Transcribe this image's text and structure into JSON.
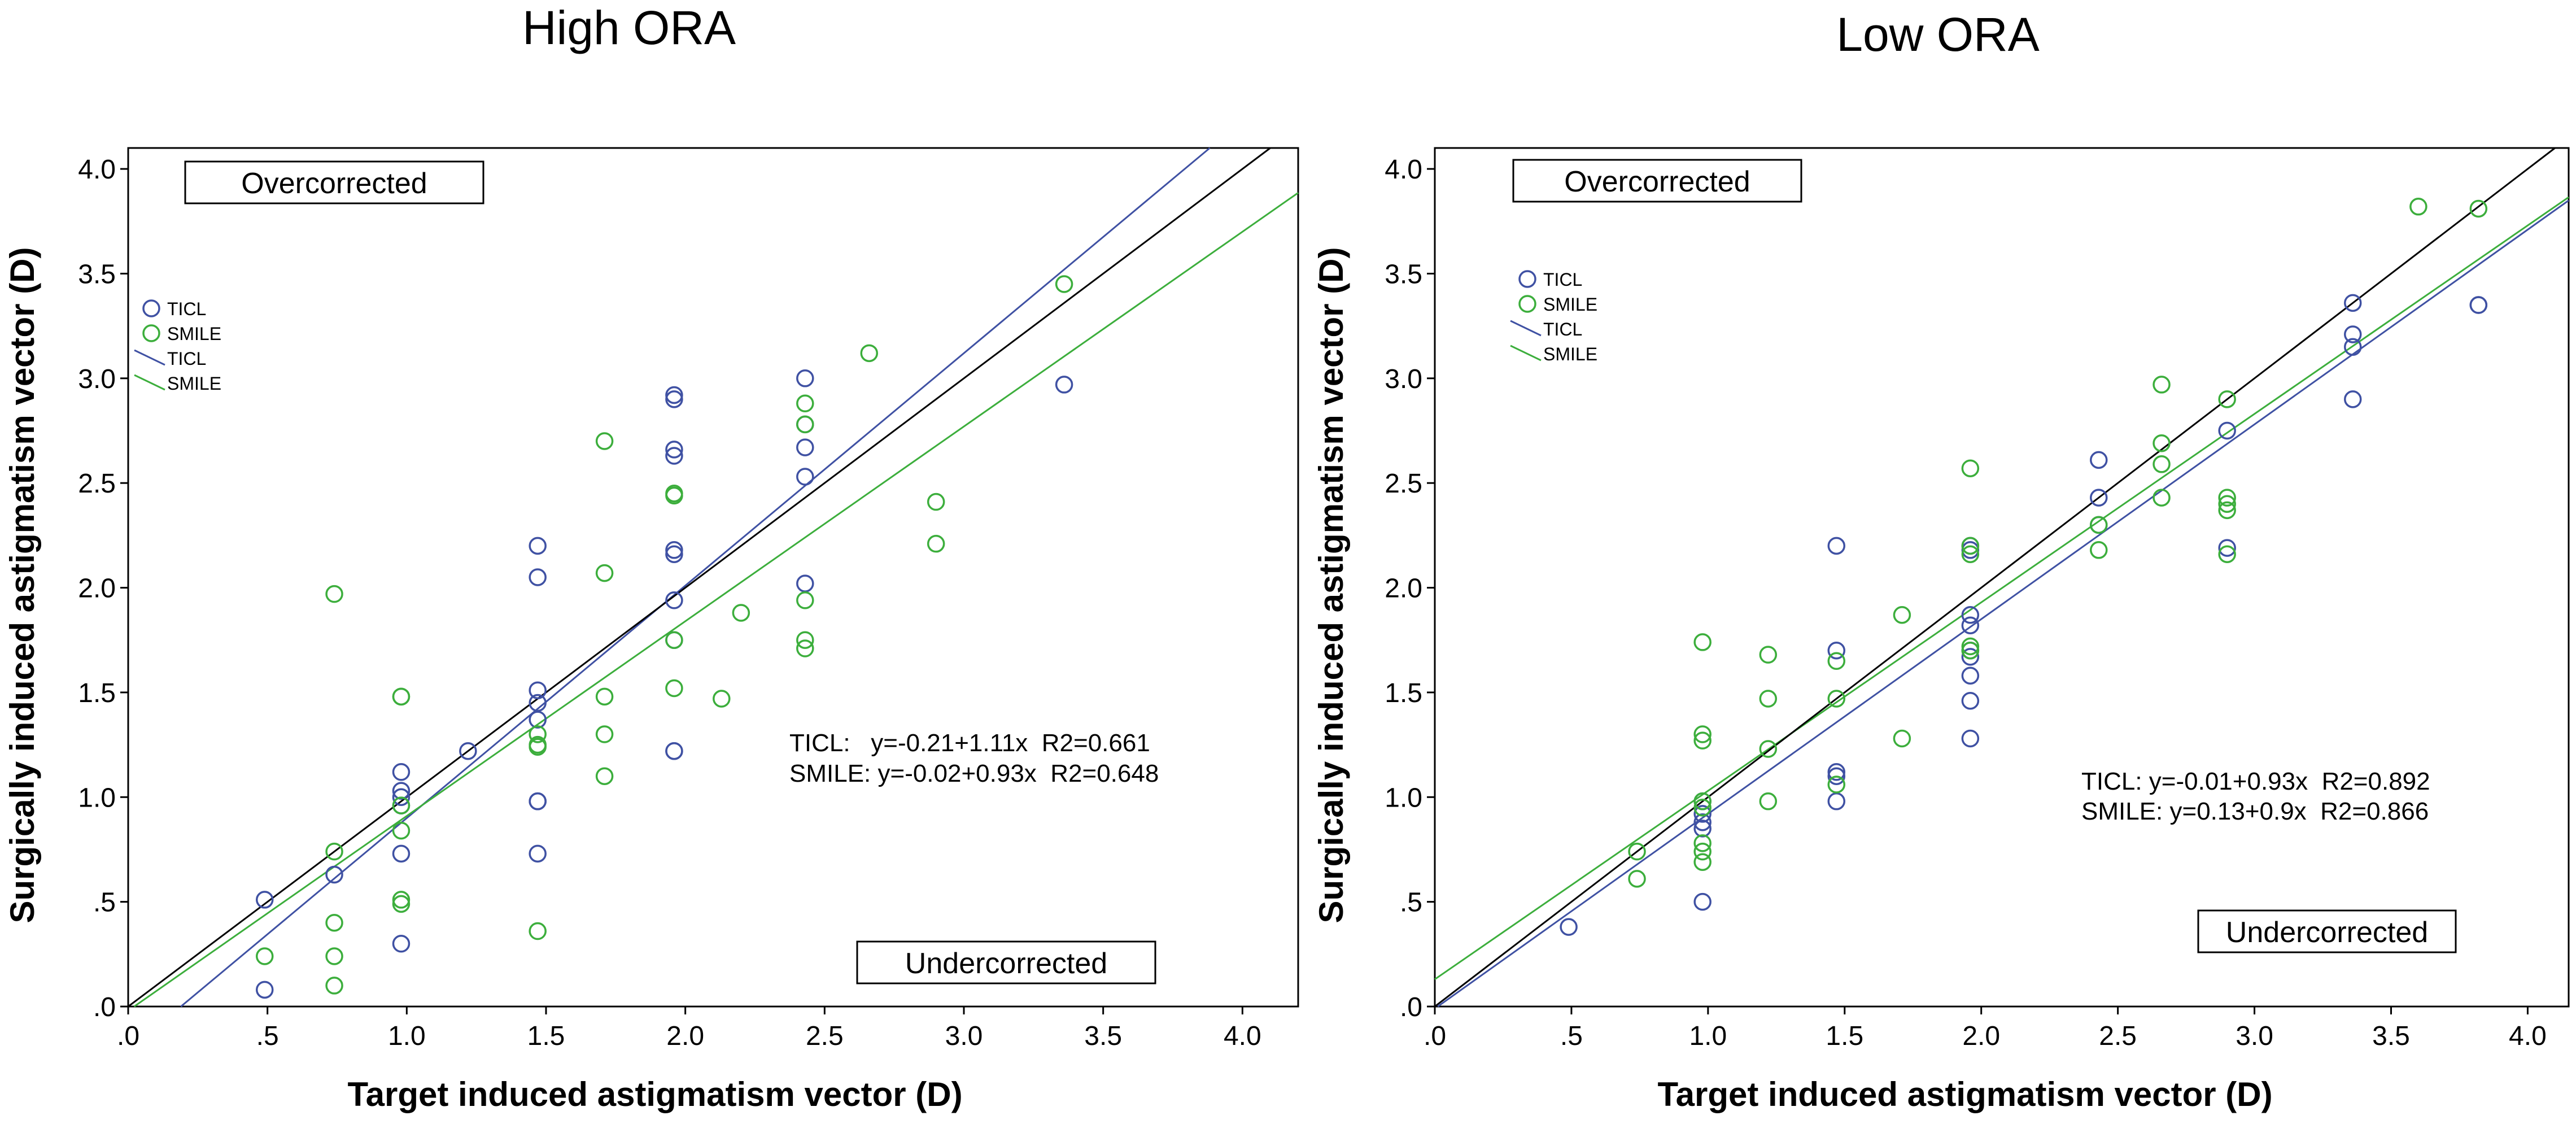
{
  "chart_data": [
    {
      "type": "scatter",
      "title": "High ORA",
      "xlabel": "Target induced astigmatism vector (D)",
      "ylabel": "Surgically induced astigmatism vector (D)",
      "xlim": [
        0,
        4.2
      ],
      "ylim": [
        0,
        4.1
      ],
      "xticks": [
        ".0",
        ".5",
        "1.0",
        "1.5",
        "2.0",
        "2.5",
        "3.0",
        "3.5",
        "4.0"
      ],
      "yticks": [
        ".0",
        ".5",
        "1.0",
        "1.5",
        "2.0",
        "2.5",
        "3.0",
        "3.5",
        "4.0"
      ],
      "label_over": "Overcorrected",
      "label_under": "Undercorrected",
      "legend": [
        {
          "label": "TICL",
          "kind": "marker",
          "color": "#3f51a3"
        },
        {
          "label": "SMILE",
          "kind": "marker",
          "color": "#3cae3c"
        },
        {
          "label": "TICL",
          "kind": "line",
          "color": "#3f51a3"
        },
        {
          "label": "SMILE",
          "kind": "line",
          "color": "#3cae3c"
        }
      ],
      "equations": [
        "TICL:   y=-0.21+1.11x  R2=0.661",
        "SMILE: y=-0.02+0.93x  R2=0.648"
      ],
      "series": [
        {
          "name": "TICL",
          "color": "#3f51a3",
          "points": [
            [
              0.49,
              0.51
            ],
            [
              0.49,
              0.08
            ],
            [
              0.74,
              0.63
            ],
            [
              0.98,
              1.12
            ],
            [
              0.98,
              1.03
            ],
            [
              0.98,
              1.0
            ],
            [
              0.98,
              0.96
            ],
            [
              0.98,
              0.73
            ],
            [
              0.98,
              0.3
            ],
            [
              1.22,
              1.22
            ],
            [
              1.47,
              2.2
            ],
            [
              1.47,
              2.05
            ],
            [
              1.47,
              1.51
            ],
            [
              1.47,
              1.45
            ],
            [
              1.47,
              1.37
            ],
            [
              1.47,
              0.98
            ],
            [
              1.47,
              0.98
            ],
            [
              1.47,
              0.73
            ],
            [
              1.96,
              2.92
            ],
            [
              1.96,
              2.9
            ],
            [
              1.96,
              2.66
            ],
            [
              1.96,
              2.63
            ],
            [
              1.96,
              2.18
            ],
            [
              1.96,
              2.16
            ],
            [
              1.96,
              1.94
            ],
            [
              1.96,
              1.75
            ],
            [
              1.96,
              1.22
            ],
            [
              1.96,
              1.22
            ],
            [
              2.43,
              3.0
            ],
            [
              2.43,
              2.78
            ],
            [
              2.43,
              2.67
            ],
            [
              2.43,
              2.53
            ],
            [
              2.43,
              2.02
            ],
            [
              3.36,
              2.97
            ]
          ]
        },
        {
          "name": "SMILE",
          "color": "#3cae3c",
          "points": [
            [
              0.49,
              0.24
            ],
            [
              0.74,
              1.97
            ],
            [
              0.74,
              0.74
            ],
            [
              0.74,
              0.4
            ],
            [
              0.74,
              0.24
            ],
            [
              0.74,
              0.1
            ],
            [
              0.98,
              1.48
            ],
            [
              0.98,
              1.48
            ],
            [
              0.98,
              0.96
            ],
            [
              0.98,
              0.84
            ],
            [
              0.98,
              0.51
            ],
            [
              0.98,
              0.49
            ],
            [
              1.47,
              1.3
            ],
            [
              1.47,
              1.25
            ],
            [
              1.47,
              1.24
            ],
            [
              1.47,
              0.36
            ],
            [
              1.71,
              2.7
            ],
            [
              1.71,
              2.07
            ],
            [
              1.71,
              1.48
            ],
            [
              1.71,
              1.3
            ],
            [
              1.71,
              1.1
            ],
            [
              1.96,
              2.45
            ],
            [
              1.96,
              2.44
            ],
            [
              1.96,
              1.75
            ],
            [
              1.96,
              1.52
            ],
            [
              2.13,
              1.47
            ],
            [
              2.2,
              1.88
            ],
            [
              2.43,
              2.88
            ],
            [
              2.43,
              2.78
            ],
            [
              2.43,
              1.94
            ],
            [
              2.43,
              1.75
            ],
            [
              2.43,
              1.71
            ],
            [
              2.66,
              3.12
            ],
            [
              2.9,
              2.41
            ],
            [
              2.9,
              2.21
            ],
            [
              3.36,
              3.45
            ]
          ]
        }
      ],
      "lines": [
        {
          "name": "TICL",
          "color": "#3f51a3",
          "intercept": -0.21,
          "slope": 1.11
        },
        {
          "name": "SMILE",
          "color": "#3cae3c",
          "intercept": -0.02,
          "slope": 0.93
        },
        {
          "name": "reference",
          "color": "#000000",
          "intercept": 0,
          "slope": 1
        }
      ]
    },
    {
      "type": "scatter",
      "title": "Low ORA",
      "xlabel": "Target induced astigmatism vector (D)",
      "ylabel": "Surgically induced astigmatism vector (D)",
      "xlim": [
        0,
        4.15
      ],
      "ylim": [
        0,
        4.1
      ],
      "xticks": [
        ".0",
        ".5",
        "1.0",
        "1.5",
        "2.0",
        "2.5",
        "3.0",
        "3.5",
        "4.0"
      ],
      "yticks": [
        ".0",
        ".5",
        "1.0",
        "1.5",
        "2.0",
        "2.5",
        "3.0",
        "3.5",
        "4.0"
      ],
      "label_over": "Overcorrected",
      "label_under": "Undercorrected",
      "legend": [
        {
          "label": "TICL",
          "kind": "marker",
          "color": "#3f51a3"
        },
        {
          "label": "SMILE",
          "kind": "marker",
          "color": "#3cae3c"
        },
        {
          "label": "TICL",
          "kind": "line",
          "color": "#3f51a3"
        },
        {
          "label": "SMILE",
          "kind": "line",
          "color": "#3cae3c"
        }
      ],
      "equations": [
        "TICL: y=-0.01+0.93x  R2=0.892",
        "SMILE: y=0.13+0.9x  R2=0.866"
      ],
      "series": [
        {
          "name": "TICL",
          "color": "#3f51a3",
          "points": [
            [
              0.49,
              0.38
            ],
            [
              0.98,
              0.98
            ],
            [
              0.98,
              0.92
            ],
            [
              0.98,
              0.88
            ],
            [
              0.98,
              0.85
            ],
            [
              0.98,
              0.5
            ],
            [
              1.47,
              2.2
            ],
            [
              1.47,
              1.7
            ],
            [
              1.47,
              1.12
            ],
            [
              1.47,
              1.1
            ],
            [
              1.47,
              0.98
            ],
            [
              1.96,
              2.2
            ],
            [
              1.96,
              2.18
            ],
            [
              1.96,
              1.87
            ],
            [
              1.96,
              1.82
            ],
            [
              1.96,
              1.7
            ],
            [
              1.96,
              1.67
            ],
            [
              1.96,
              1.58
            ],
            [
              1.96,
              1.46
            ],
            [
              1.96,
              1.28
            ],
            [
              2.43,
              2.61
            ],
            [
              2.43,
              2.43
            ],
            [
              2.43,
              2.3
            ],
            [
              2.9,
              2.75
            ],
            [
              2.9,
              2.19
            ],
            [
              3.36,
              3.36
            ],
            [
              3.36,
              3.21
            ],
            [
              3.36,
              3.15
            ],
            [
              3.36,
              2.9
            ],
            [
              3.82,
              3.35
            ],
            [
              3.82,
              3.35
            ]
          ]
        },
        {
          "name": "SMILE",
          "color": "#3cae3c",
          "points": [
            [
              0.74,
              0.74
            ],
            [
              0.74,
              0.61
            ],
            [
              0.98,
              1.74
            ],
            [
              0.98,
              1.3
            ],
            [
              0.98,
              1.27
            ],
            [
              0.98,
              0.98
            ],
            [
              0.98,
              0.95
            ],
            [
              0.98,
              0.78
            ],
            [
              0.98,
              0.74
            ],
            [
              0.98,
              0.69
            ],
            [
              1.22,
              1.68
            ],
            [
              1.22,
              1.47
            ],
            [
              1.22,
              1.23
            ],
            [
              1.22,
              0.98
            ],
            [
              1.47,
              1.65
            ],
            [
              1.47,
              1.47
            ],
            [
              1.47,
              1.06
            ],
            [
              1.71,
              1.87
            ],
            [
              1.71,
              1.28
            ],
            [
              1.96,
              2.57
            ],
            [
              1.96,
              2.2
            ],
            [
              1.96,
              2.16
            ],
            [
              1.96,
              1.72
            ],
            [
              1.96,
              1.7
            ],
            [
              2.43,
              2.3
            ],
            [
              2.43,
              2.18
            ],
            [
              2.66,
              2.97
            ],
            [
              2.66,
              2.69
            ],
            [
              2.66,
              2.59
            ],
            [
              2.66,
              2.43
            ],
            [
              2.9,
              2.9
            ],
            [
              2.9,
              2.43
            ],
            [
              2.9,
              2.4
            ],
            [
              2.9,
              2.37
            ],
            [
              2.9,
              2.16
            ],
            [
              3.6,
              3.82
            ],
            [
              3.82,
              3.81
            ]
          ]
        }
      ],
      "lines": [
        {
          "name": "TICL",
          "color": "#3f51a3",
          "intercept": -0.01,
          "slope": 0.93
        },
        {
          "name": "SMILE",
          "color": "#3cae3c",
          "intercept": 0.13,
          "slope": 0.9
        },
        {
          "name": "reference",
          "color": "#000000",
          "intercept": 0,
          "slope": 1
        }
      ]
    }
  ]
}
